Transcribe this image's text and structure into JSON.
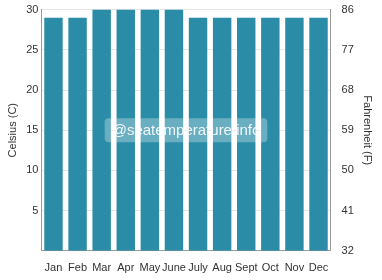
{
  "chart_data": {
    "type": "bar",
    "categories": [
      "Jan",
      "Feb",
      "Mar",
      "Apr",
      "May",
      "June",
      "July",
      "Aug",
      "Sept",
      "Oct",
      "Nov",
      "Dec"
    ],
    "values": [
      29,
      29,
      30,
      30,
      30,
      30,
      29,
      29,
      29,
      29,
      29,
      29
    ],
    "color": "#2a8ca6",
    "ylabel": "Celsius (C)",
    "y2label": "Fahrenheit (F)",
    "ylim": [
      0,
      30
    ],
    "yticks": [
      5,
      10,
      15,
      20,
      25,
      30
    ],
    "y2lim": [
      32,
      86
    ],
    "y2ticks": [
      32,
      41,
      50,
      59,
      68,
      77,
      86
    ],
    "annotation": "@seatemperature.info",
    "grid": true
  }
}
